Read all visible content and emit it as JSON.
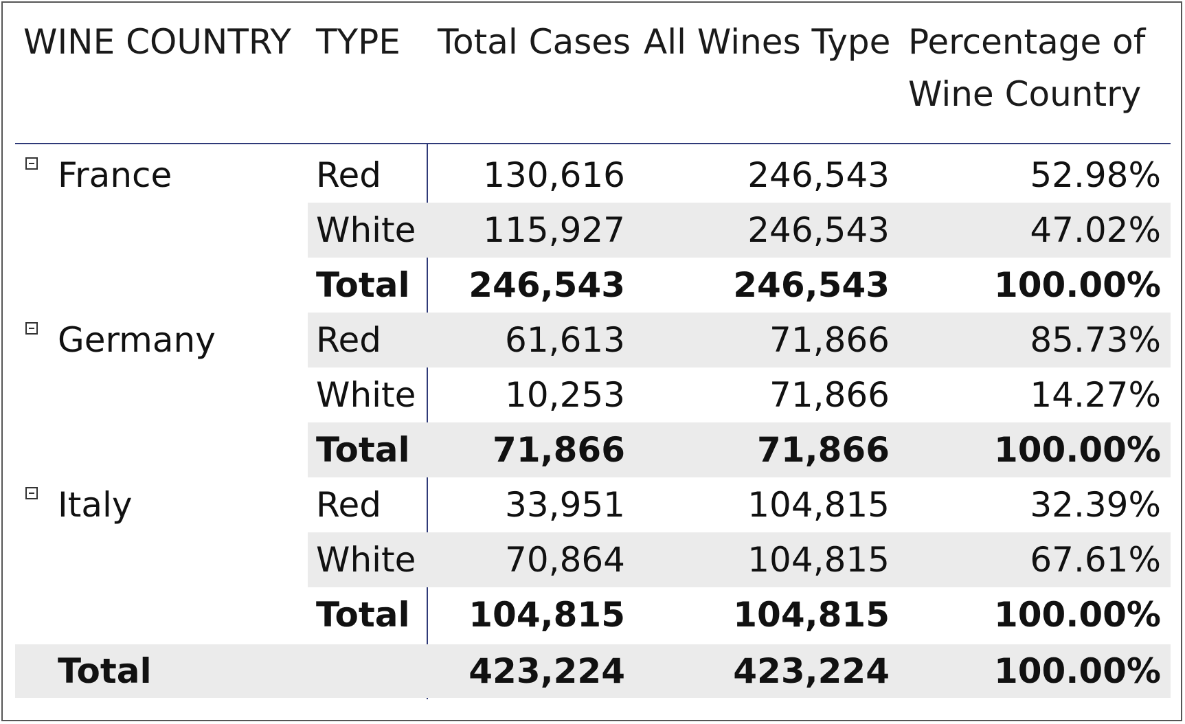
{
  "headers": {
    "wine_country": "WINE COUNTRY",
    "type": "TYPE",
    "total_cases": "Total Cases",
    "all_wines_type": "All Wines Type",
    "percentage_line1": "Percentage of",
    "percentage_line2": "Wine Country"
  },
  "groups": [
    {
      "country": "France",
      "rows": [
        {
          "type": "Red",
          "total_cases": "130,616",
          "all_wines_type": "246,543",
          "percentage": "52.98%"
        },
        {
          "type": "White",
          "total_cases": "115,927",
          "all_wines_type": "246,543",
          "percentage": "47.02%"
        },
        {
          "type": "Total",
          "total_cases": "246,543",
          "all_wines_type": "246,543",
          "percentage": "100.00%"
        }
      ]
    },
    {
      "country": "Germany",
      "rows": [
        {
          "type": "Red",
          "total_cases": "61,613",
          "all_wines_type": "71,866",
          "percentage": "85.73%"
        },
        {
          "type": "White",
          "total_cases": "10,253",
          "all_wines_type": "71,866",
          "percentage": "14.27%"
        },
        {
          "type": "Total",
          "total_cases": "71,866",
          "all_wines_type": "71,866",
          "percentage": "100.00%"
        }
      ]
    },
    {
      "country": "Italy",
      "rows": [
        {
          "type": "Red",
          "total_cases": "33,951",
          "all_wines_type": "104,815",
          "percentage": "32.39%"
        },
        {
          "type": "White",
          "total_cases": "70,864",
          "all_wines_type": "104,815",
          "percentage": "67.61%"
        },
        {
          "type": "Total",
          "total_cases": "104,815",
          "all_wines_type": "104,815",
          "percentage": "100.00%"
        }
      ]
    }
  ],
  "grand_total": {
    "label": "Total",
    "total_cases": "423,224",
    "all_wines_type": "423,224",
    "percentage": "100.00%"
  },
  "colors": {
    "band": "#ebebeb",
    "rule": "#2f3a78"
  }
}
